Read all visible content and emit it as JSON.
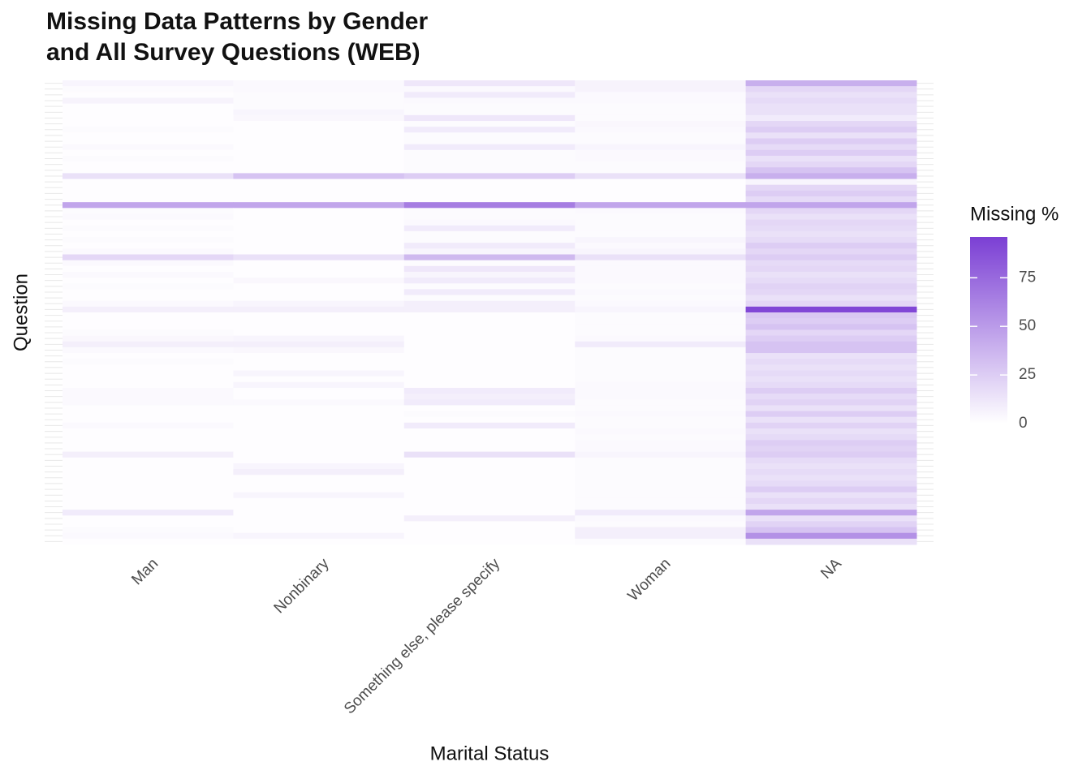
{
  "chart_data": {
    "type": "heatmap",
    "title": [
      "Missing Data Patterns by Gender",
      "and All Survey Questions (WEB)"
    ],
    "x_label": "Marital Status",
    "y_label": "Question",
    "categories": [
      "Man",
      "Nonbinary",
      "Something else, please specify",
      "Woman",
      "NA"
    ],
    "y_categories": [
      null,
      null,
      null,
      null,
      null,
      null,
      null,
      null,
      null,
      null,
      null,
      null,
      null,
      null,
      null,
      null,
      null,
      null,
      null,
      null,
      null,
      null,
      null,
      null,
      null,
      null,
      null,
      null,
      null,
      null,
      null,
      null,
      null,
      null,
      null,
      null,
      null,
      null,
      null,
      null,
      null,
      null,
      null,
      null,
      null,
      null,
      null,
      null,
      null,
      null,
      null,
      null,
      null,
      null,
      null,
      null,
      null,
      null,
      null,
      null,
      null,
      null,
      null,
      null,
      null,
      null,
      null,
      null,
      null,
      null,
      null,
      null,
      null,
      null,
      null,
      null,
      null,
      null,
      null,
      null
    ],
    "values": [
      [
        5,
        3,
        12,
        6,
        40
      ],
      [
        2,
        3,
        3,
        6,
        20
      ],
      [
        1,
        2,
        10,
        3,
        15
      ],
      [
        6,
        2,
        3,
        3,
        18
      ],
      [
        1,
        2,
        2,
        2,
        15
      ],
      [
        1,
        5,
        2,
        2,
        15
      ],
      [
        1,
        4,
        12,
        2,
        10
      ],
      [
        1,
        1,
        2,
        4,
        20
      ],
      [
        2,
        1,
        10,
        3,
        25
      ],
      [
        1,
        1,
        2,
        2,
        15
      ],
      [
        1,
        1,
        2,
        2,
        25
      ],
      [
        3,
        1,
        10,
        5,
        18
      ],
      [
        1,
        1,
        2,
        3,
        25
      ],
      [
        2,
        1,
        2,
        3,
        15
      ],
      [
        1,
        1,
        2,
        2,
        20
      ],
      [
        1,
        1,
        2,
        2,
        30
      ],
      [
        15,
        30,
        25,
        15,
        40
      ],
      [
        1,
        1,
        1,
        1,
        5
      ],
      [
        1,
        1,
        1,
        1,
        20
      ],
      [
        1,
        1,
        1,
        1,
        25
      ],
      [
        1,
        1,
        1,
        1,
        18
      ],
      [
        45,
        45,
        65,
        45,
        45
      ],
      [
        2,
        1,
        2,
        3,
        20
      ],
      [
        3,
        1,
        2,
        2,
        15
      ],
      [
        1,
        1,
        3,
        2,
        20
      ],
      [
        2,
        1,
        10,
        2,
        18
      ],
      [
        1,
        1,
        2,
        2,
        15
      ],
      [
        2,
        1,
        2,
        5,
        18
      ],
      [
        1,
        1,
        10,
        3,
        25
      ],
      [
        3,
        1,
        5,
        5,
        20
      ],
      [
        20,
        15,
        35,
        15,
        25
      ],
      [
        3,
        1,
        2,
        3,
        18
      ],
      [
        1,
        1,
        12,
        3,
        20
      ],
      [
        3,
        1,
        5,
        3,
        15
      ],
      [
        1,
        4,
        10,
        3,
        18
      ],
      [
        2,
        1,
        2,
        2,
        22
      ],
      [
        1,
        1,
        10,
        3,
        20
      ],
      [
        1,
        1,
        2,
        2,
        15
      ],
      [
        3,
        5,
        8,
        3,
        20
      ],
      [
        8,
        8,
        8,
        5,
        92
      ],
      [
        1,
        1,
        1,
        2,
        28
      ],
      [
        1,
        1,
        1,
        2,
        25
      ],
      [
        1,
        1,
        1,
        2,
        30
      ],
      [
        2,
        1,
        1,
        2,
        20
      ],
      [
        4,
        5,
        1,
        3,
        25
      ],
      [
        8,
        8,
        1,
        10,
        30
      ],
      [
        3,
        4,
        1,
        2,
        30
      ],
      [
        1,
        1,
        1,
        2,
        15
      ],
      [
        2,
        1,
        1,
        2,
        18
      ],
      [
        1,
        1,
        1,
        2,
        15
      ],
      [
        1,
        5,
        1,
        2,
        18
      ],
      [
        1,
        1,
        1,
        2,
        15
      ],
      [
        1,
        5,
        1,
        3,
        18
      ],
      [
        3,
        1,
        10,
        3,
        25
      ],
      [
        3,
        1,
        8,
        3,
        18
      ],
      [
        3,
        3,
        10,
        2,
        22
      ],
      [
        1,
        1,
        1,
        2,
        15
      ],
      [
        1,
        1,
        2,
        3,
        25
      ],
      [
        1,
        1,
        1,
        2,
        15
      ],
      [
        3,
        1,
        10,
        2,
        22
      ],
      [
        1,
        1,
        1,
        3,
        15
      ],
      [
        1,
        1,
        1,
        2,
        18
      ],
      [
        1,
        1,
        1,
        3,
        25
      ],
      [
        1,
        1,
        1,
        3,
        22
      ],
      [
        8,
        1,
        15,
        5,
        25
      ],
      [
        1,
        1,
        1,
        2,
        18
      ],
      [
        1,
        5,
        1,
        2,
        15
      ],
      [
        1,
        8,
        1,
        2,
        18
      ],
      [
        1,
        1,
        1,
        2,
        15
      ],
      [
        1,
        1,
        1,
        2,
        18
      ],
      [
        1,
        1,
        1,
        2,
        25
      ],
      [
        1,
        5,
        1,
        2,
        15
      ],
      [
        1,
        1,
        1,
        2,
        20
      ],
      [
        1,
        1,
        1,
        2,
        15
      ],
      [
        10,
        1,
        1,
        10,
        45
      ],
      [
        1,
        1,
        8,
        3,
        15
      ],
      [
        1,
        1,
        1,
        2,
        22
      ],
      [
        2,
        1,
        1,
        8,
        30
      ],
      [
        3,
        5,
        1,
        8,
        55
      ],
      [
        1,
        1,
        1,
        2,
        15
      ]
    ],
    "colorbar": {
      "title": "Missing %",
      "lim": [
        0,
        96
      ],
      "ticks": [
        0,
        25,
        50,
        75
      ],
      "low_color": "#ffffff",
      "high_color": "#7b3fd4"
    },
    "grid": true
  }
}
